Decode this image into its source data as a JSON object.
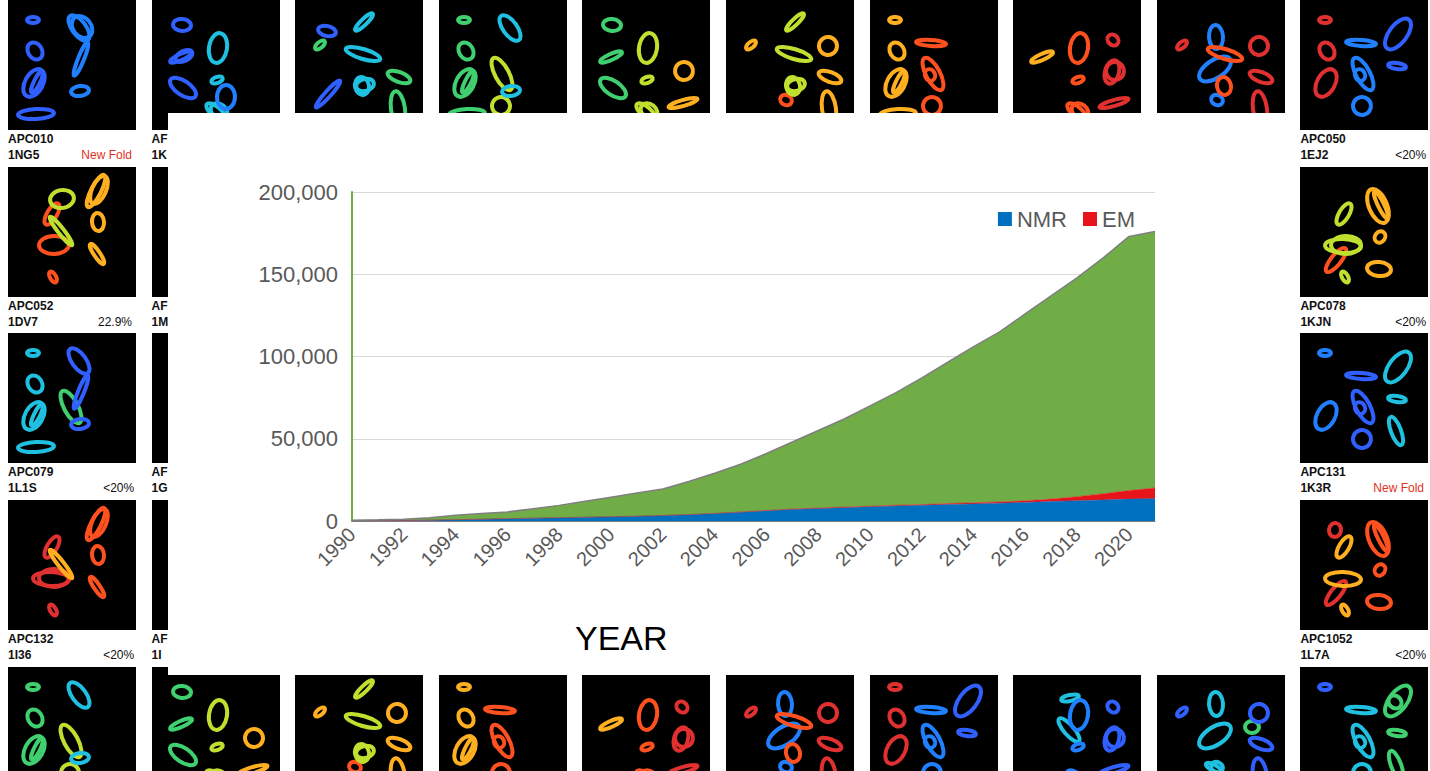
{
  "chart_data": {
    "type": "area",
    "x_label": "YEAR",
    "stacked": true,
    "grid": true,
    "legend": "upper right",
    "categories": [
      "1990",
      null,
      "1992",
      null,
      "1994",
      null,
      "1996",
      null,
      "1998",
      null,
      "2000",
      null,
      "2002",
      null,
      "2004",
      null,
      "2006",
      null,
      "2008",
      null,
      "2010",
      null,
      "2012",
      null,
      "2014",
      null,
      "2016",
      null,
      "2018",
      null,
      "2020",
      null
    ],
    "ylim": [
      0,
      200000
    ],
    "yticks": [
      0,
      {
        "value": 50000,
        "label": "50,000"
      },
      {
        "value": 100000,
        "label": "100,000"
      },
      {
        "value": 150000,
        "label": "150,000"
      },
      {
        "value": 200000,
        "label": "200,000"
      }
    ],
    "series": [
      {
        "name": "NMR",
        "color": "#0070c0",
        "values": [
          100,
          200,
          300,
          500,
          800,
          1100,
          1400,
          1700,
          2000,
          2300,
          2600,
          2900,
          3300,
          3800,
          4500,
          5300,
          6200,
          7000,
          7600,
          8100,
          8600,
          9100,
          9500,
          10000,
          10400,
          10800,
          11300,
          11800,
          12300,
          12800,
          13300,
          13600
        ]
      },
      {
        "name": "EM",
        "color": "#e8141c",
        "values": [
          0,
          0,
          0,
          0,
          0,
          0,
          0,
          0,
          0,
          0,
          0,
          0,
          100,
          100,
          100,
          200,
          200,
          300,
          300,
          400,
          400,
          500,
          500,
          600,
          700,
          800,
          1000,
          1500,
          2500,
          3800,
          5200,
          6500
        ]
      },
      {
        "color": "#70ad47",
        "values": [
          400,
          500,
          700,
          1500,
          2700,
          3400,
          4100,
          5800,
          7500,
          9700,
          11900,
          14100,
          16100,
          20100,
          24400,
          29000,
          34600,
          40700,
          47100,
          53500,
          61000,
          68400,
          77000,
          85900,
          94900,
          103400,
          113700,
          123700,
          133200,
          143400,
          154500,
          155900
        ]
      }
    ]
  },
  "background_tiles": {
    "left_column": [
      {
        "id": "APC010",
        "pdb": "1NG5",
        "note": "New Fold",
        "note_color": "#e0301e"
      },
      {
        "id": "APC052",
        "pdb": "1DV7",
        "note": "22.9%"
      },
      {
        "id": "APC079",
        "pdb": "1L1S",
        "note": "<20%"
      },
      {
        "id": "APC132",
        "pdb": "1I36",
        "note": "<20%"
      }
    ],
    "second_column": [
      {
        "id": "AF",
        "pdb": "1K"
      },
      {
        "id": "AF",
        "pdb": "1M"
      },
      {
        "id": "AF",
        "pdb": "1G"
      },
      {
        "id": "AF",
        "pdb": "1I"
      }
    ],
    "right_column": [
      {
        "id": "APC050",
        "pdb": "1EJ2",
        "note": "<20%"
      },
      {
        "id": "APC078",
        "pdb": "1KJN",
        "note": "<20%"
      },
      {
        "id": "APC131",
        "pdb": "1K3R",
        "note": "New Fold",
        "note_color": "#e0301e"
      },
      {
        "id": "APC1052",
        "pdb": "1L7A",
        "note": "<20%"
      }
    ]
  }
}
